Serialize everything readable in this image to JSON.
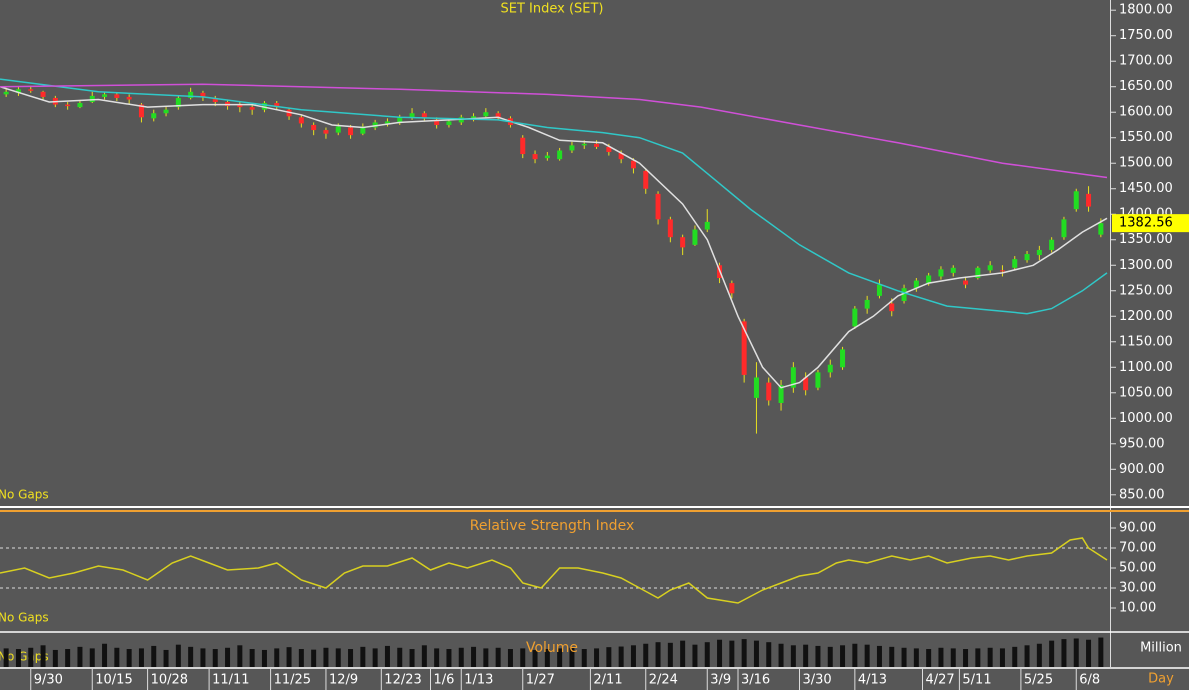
{
  "chart_data": [
    {
      "type": "candlestick",
      "title": "SET Index (SET)",
      "note": "No Gaps",
      "xlim": [
        0,
        180
      ],
      "ylim": [
        830,
        1820
      ],
      "yticks": [
        {
          "value": 850,
          "label": "850.00"
        },
        {
          "value": 900,
          "label": "900.00"
        },
        {
          "value": 950,
          "label": "950.00"
        },
        {
          "value": 1000,
          "label": "1000.00"
        },
        {
          "value": 1050,
          "label": "1050.00"
        },
        {
          "value": 1100,
          "label": "1100.00"
        },
        {
          "value": 1150,
          "label": "1150.00"
        },
        {
          "value": 1200,
          "label": "1200.00"
        },
        {
          "value": 1250,
          "label": "1250.00"
        },
        {
          "value": 1300,
          "label": "1300.00"
        },
        {
          "value": 1350,
          "label": "1350.00"
        },
        {
          "value": 1400,
          "label": "1400.00"
        },
        {
          "value": 1450,
          "label": "1450.00"
        },
        {
          "value": 1500,
          "label": "1500.00"
        },
        {
          "value": 1550,
          "label": "1550.00"
        },
        {
          "value": 1600,
          "label": "1600.00"
        },
        {
          "value": 1650,
          "label": "1650.00"
        },
        {
          "value": 1700,
          "label": "1700.00"
        },
        {
          "value": 1750,
          "label": "1750.00"
        },
        {
          "value": 1800,
          "label": "1800.00"
        }
      ],
      "up_color": "#22dd22",
      "down_color": "#ff2a2a",
      "wick_color": "#e8e020",
      "x": [
        1,
        3,
        5,
        7,
        9,
        11,
        13,
        15,
        17,
        19,
        21,
        23,
        25,
        27,
        29,
        31,
        33,
        35,
        37,
        39,
        41,
        43,
        45,
        47,
        49,
        51,
        53,
        55,
        57,
        59,
        61,
        63,
        65,
        67,
        69,
        71,
        73,
        75,
        77,
        79,
        81,
        83,
        85,
        87,
        89,
        91,
        93,
        95,
        97,
        99,
        101,
        103,
        105,
        107,
        109,
        111,
        113,
        115,
        117,
        119,
        121,
        123,
        125,
        127,
        129,
        131,
        133,
        135,
        137,
        139,
        141,
        143,
        145,
        147,
        149,
        151,
        153,
        155,
        157,
        159,
        161,
        163,
        165,
        167,
        169,
        171,
        173,
        175,
        177,
        179
      ],
      "ohlc": [
        [
          1635,
          1648,
          1630,
          1640
        ],
        [
          1638,
          1650,
          1632,
          1645
        ],
        [
          1645,
          1652,
          1638,
          1642
        ],
        [
          1640,
          1642,
          1625,
          1630
        ],
        [
          1628,
          1632,
          1610,
          1615
        ],
        [
          1615,
          1620,
          1605,
          1612
        ],
        [
          1610,
          1622,
          1608,
          1618
        ],
        [
          1620,
          1640,
          1618,
          1632
        ],
        [
          1630,
          1640,
          1625,
          1635
        ],
        [
          1635,
          1638,
          1622,
          1628
        ],
        [
          1630,
          1635,
          1615,
          1625
        ],
        [
          1615,
          1618,
          1580,
          1590
        ],
        [
          1588,
          1605,
          1582,
          1598
        ],
        [
          1598,
          1612,
          1592,
          1605
        ],
        [
          1610,
          1632,
          1605,
          1628
        ],
        [
          1628,
          1648,
          1625,
          1640
        ],
        [
          1638,
          1642,
          1622,
          1630
        ],
        [
          1628,
          1632,
          1612,
          1620
        ],
        [
          1620,
          1625,
          1605,
          1612
        ],
        [
          1615,
          1620,
          1600,
          1610
        ],
        [
          1610,
          1615,
          1595,
          1605
        ],
        [
          1605,
          1622,
          1600,
          1618
        ],
        [
          1618,
          1622,
          1605,
          1610
        ],
        [
          1605,
          1608,
          1585,
          1592
        ],
        [
          1590,
          1595,
          1570,
          1578
        ],
        [
          1575,
          1580,
          1555,
          1565
        ],
        [
          1565,
          1570,
          1548,
          1558
        ],
        [
          1560,
          1578,
          1555,
          1572
        ],
        [
          1570,
          1575,
          1548,
          1555
        ],
        [
          1558,
          1578,
          1555,
          1572
        ],
        [
          1570,
          1585,
          1565,
          1580
        ],
        [
          1578,
          1588,
          1572,
          1582
        ],
        [
          1580,
          1595,
          1575,
          1590
        ],
        [
          1590,
          1608,
          1585,
          1598
        ],
        [
          1598,
          1602,
          1582,
          1588
        ],
        [
          1585,
          1590,
          1568,
          1575
        ],
        [
          1575,
          1588,
          1570,
          1582
        ],
        [
          1580,
          1595,
          1575,
          1590
        ],
        [
          1588,
          1598,
          1582,
          1592
        ],
        [
          1592,
          1608,
          1590,
          1600
        ],
        [
          1598,
          1602,
          1585,
          1590
        ],
        [
          1588,
          1592,
          1570,
          1575
        ],
        [
          1550,
          1555,
          1510,
          1518
        ],
        [
          1518,
          1525,
          1500,
          1508
        ],
        [
          1510,
          1522,
          1505,
          1515
        ],
        [
          1508,
          1530,
          1505,
          1525
        ],
        [
          1525,
          1542,
          1520,
          1535
        ],
        [
          1535,
          1545,
          1528,
          1538
        ],
        [
          1538,
          1545,
          1528,
          1532
        ],
        [
          1532,
          1538,
          1515,
          1522
        ],
        [
          1520,
          1525,
          1500,
          1508
        ],
        [
          1505,
          1510,
          1480,
          1490
        ],
        [
          1485,
          1490,
          1440,
          1450
        ],
        [
          1440,
          1445,
          1380,
          1390
        ],
        [
          1390,
          1395,
          1345,
          1355
        ],
        [
          1355,
          1360,
          1320,
          1335
        ],
        [
          1340,
          1378,
          1338,
          1370
        ],
        [
          1370,
          1410,
          1365,
          1385
        ],
        [
          1300,
          1305,
          1265,
          1275
        ],
        [
          1265,
          1270,
          1235,
          1245
        ],
        [
          1190,
          1195,
          1070,
          1085
        ],
        [
          1040,
          1110,
          970,
          1080
        ],
        [
          1070,
          1080,
          1025,
          1035
        ],
        [
          1030,
          1075,
          1015,
          1065
        ],
        [
          1060,
          1110,
          1050,
          1100
        ],
        [
          1080,
          1090,
          1045,
          1055
        ],
        [
          1060,
          1095,
          1055,
          1090
        ],
        [
          1090,
          1115,
          1080,
          1105
        ],
        [
          1100,
          1140,
          1095,
          1135
        ],
        [
          1180,
          1220,
          1175,
          1215
        ],
        [
          1215,
          1240,
          1205,
          1232
        ],
        [
          1240,
          1272,
          1235,
          1262
        ],
        [
          1225,
          1235,
          1200,
          1210
        ],
        [
          1230,
          1262,
          1225,
          1255
        ],
        [
          1255,
          1275,
          1248,
          1270
        ],
        [
          1265,
          1285,
          1260,
          1280
        ],
        [
          1278,
          1298,
          1272,
          1292
        ],
        [
          1285,
          1300,
          1278,
          1295
        ],
        [
          1270,
          1278,
          1255,
          1262
        ],
        [
          1275,
          1298,
          1272,
          1295
        ],
        [
          1290,
          1308,
          1285,
          1300
        ],
        [
          1290,
          1300,
          1278,
          1288
        ],
        [
          1295,
          1318,
          1290,
          1312
        ],
        [
          1310,
          1328,
          1305,
          1322
        ],
        [
          1320,
          1338,
          1310,
          1330
        ],
        [
          1330,
          1355,
          1325,
          1350
        ],
        [
          1355,
          1395,
          1350,
          1390
        ],
        [
          1410,
          1450,
          1405,
          1445
        ],
        [
          1440,
          1455,
          1405,
          1415
        ],
        [
          1360,
          1392,
          1355,
          1382.56
        ]
      ],
      "series": [
        {
          "color": "#e0e0e0",
          "x": [
            0,
            8,
            16,
            24,
            33,
            41,
            49,
            54,
            59,
            65,
            73,
            81,
            86,
            91,
            98,
            104,
            111,
            115,
            120,
            124,
            127,
            130,
            133,
            138,
            142,
            146,
            151,
            156,
            163,
            168,
            172,
            176,
            180
          ],
          "values": [
            1650,
            1620,
            1625,
            1610,
            1615,
            1615,
            1595,
            1575,
            1570,
            1580,
            1585,
            1590,
            1570,
            1545,
            1540,
            1500,
            1420,
            1350,
            1200,
            1100,
            1060,
            1070,
            1100,
            1170,
            1200,
            1240,
            1265,
            1275,
            1285,
            1300,
            1330,
            1365,
            1392
          ]
        },
        {
          "color": "#30c8c8",
          "x": [
            0,
            16,
            33,
            49,
            65,
            81,
            89,
            98,
            104,
            111,
            115,
            122,
            130,
            138,
            146,
            154,
            163,
            167,
            171,
            176,
            180
          ],
          "values": [
            1665,
            1640,
            1630,
            1605,
            1590,
            1585,
            1570,
            1560,
            1550,
            1520,
            1480,
            1410,
            1340,
            1285,
            1250,
            1220,
            1210,
            1205,
            1215,
            1250,
            1285
          ]
        },
        {
          "color": "#d050d8",
          "x": [
            0,
            33,
            65,
            89,
            104,
            114,
            130,
            146,
            163,
            180
          ],
          "values": [
            1650,
            1655,
            1645,
            1635,
            1625,
            1610,
            1575,
            1540,
            1500,
            1472
          ]
        }
      ]
    },
    {
      "type": "line",
      "title": "Relative Strength Index",
      "note": "No Gaps",
      "xlim": [
        0,
        180
      ],
      "ylim": [
        -12,
        103
      ],
      "yticks": [
        {
          "value": 10,
          "label": "10.00"
        },
        {
          "value": 30,
          "label": "30.00"
        },
        {
          "value": 50,
          "label": "50.00"
        },
        {
          "value": 70,
          "label": "70.00"
        },
        {
          "value": 90,
          "label": "90.00"
        }
      ],
      "reference_lines": [
        70,
        30
      ],
      "series": [
        {
          "color": "#d8d020",
          "x": [
            0,
            4,
            8,
            12,
            16,
            20,
            24,
            28,
            31,
            34,
            37,
            42,
            45,
            49,
            53,
            56,
            59,
            63,
            67,
            70,
            73,
            76,
            80,
            83,
            85,
            88,
            91,
            94,
            98,
            101,
            104,
            107,
            109,
            112,
            115,
            117,
            120,
            124,
            127,
            130,
            133,
            136,
            138,
            141,
            145,
            148,
            151,
            154,
            158,
            161,
            164,
            167,
            171,
            174,
            176,
            177,
            180
          ],
          "values": [
            45,
            50,
            40,
            45,
            52,
            48,
            38,
            55,
            62,
            55,
            48,
            50,
            55,
            38,
            30,
            45,
            52,
            52,
            60,
            48,
            55,
            50,
            58,
            50,
            35,
            30,
            50,
            50,
            45,
            40,
            30,
            20,
            28,
            35,
            20,
            18,
            15,
            28,
            35,
            42,
            45,
            55,
            58,
            55,
            62,
            58,
            62,
            55,
            60,
            62,
            58,
            62,
            65,
            78,
            80,
            70,
            58
          ]
        }
      ]
    },
    {
      "type": "bar",
      "title": "Volume",
      "note": "No Gaps",
      "ylabel": "Million",
      "xlabel": "Day",
      "xlim": [
        0,
        180
      ],
      "ylim": [
        0,
        100
      ],
      "color": "#111111",
      "xticks": [
        {
          "value": 5,
          "label": "9/30"
        },
        {
          "value": 15,
          "label": "10/15"
        },
        {
          "value": 24,
          "label": "10/28"
        },
        {
          "value": 34,
          "label": "11/11"
        },
        {
          "value": 44,
          "label": "11/25"
        },
        {
          "value": 53,
          "label": "12/9"
        },
        {
          "value": 62,
          "label": "12/23"
        },
        {
          "value": 70,
          "label": "1/6"
        },
        {
          "value": 75,
          "label": "1/13"
        },
        {
          "value": 85,
          "label": "1/27"
        },
        {
          "value": 96,
          "label": "2/11"
        },
        {
          "value": 105,
          "label": "2/24"
        },
        {
          "value": 115,
          "label": "3/9"
        },
        {
          "value": 120,
          "label": "3/16"
        },
        {
          "value": 130,
          "label": "3/30"
        },
        {
          "value": 139,
          "label": "4/13"
        },
        {
          "value": 150,
          "label": "4/27"
        },
        {
          "value": 156,
          "label": "5/11"
        },
        {
          "value": 166,
          "label": "5/25"
        },
        {
          "value": 175,
          "label": "6/8"
        }
      ],
      "x": [
        1,
        3,
        5,
        7,
        9,
        11,
        13,
        15,
        17,
        19,
        21,
        23,
        25,
        27,
        29,
        31,
        33,
        35,
        37,
        39,
        41,
        43,
        45,
        47,
        49,
        51,
        53,
        55,
        57,
        59,
        61,
        63,
        65,
        67,
        69,
        71,
        73,
        75,
        77,
        79,
        81,
        83,
        85,
        87,
        89,
        91,
        93,
        95,
        97,
        99,
        101,
        103,
        105,
        107,
        109,
        111,
        113,
        115,
        117,
        119,
        121,
        123,
        125,
        127,
        129,
        131,
        133,
        135,
        137,
        139,
        141,
        143,
        145,
        147,
        149,
        151,
        153,
        155,
        157,
        159,
        161,
        163,
        165,
        167,
        169,
        171,
        173,
        175,
        177,
        179
      ],
      "values": [
        60,
        58,
        62,
        70,
        55,
        58,
        65,
        60,
        75,
        62,
        58,
        60,
        68,
        55,
        72,
        65,
        60,
        58,
        62,
        70,
        58,
        55,
        60,
        64,
        58,
        56,
        62,
        60,
        58,
        65,
        60,
        68,
        62,
        58,
        70,
        60,
        58,
        62,
        65,
        60,
        62,
        58,
        60,
        55,
        58,
        60,
        62,
        58,
        60,
        64,
        66,
        70,
        75,
        80,
        78,
        85,
        72,
        80,
        88,
        85,
        90,
        85,
        80,
        75,
        70,
        72,
        68,
        65,
        70,
        75,
        72,
        68,
        65,
        62,
        60,
        58,
        62,
        60,
        58,
        60,
        62,
        60,
        65,
        70,
        75,
        85,
        90,
        92,
        88,
        95
      ]
    }
  ]
}
